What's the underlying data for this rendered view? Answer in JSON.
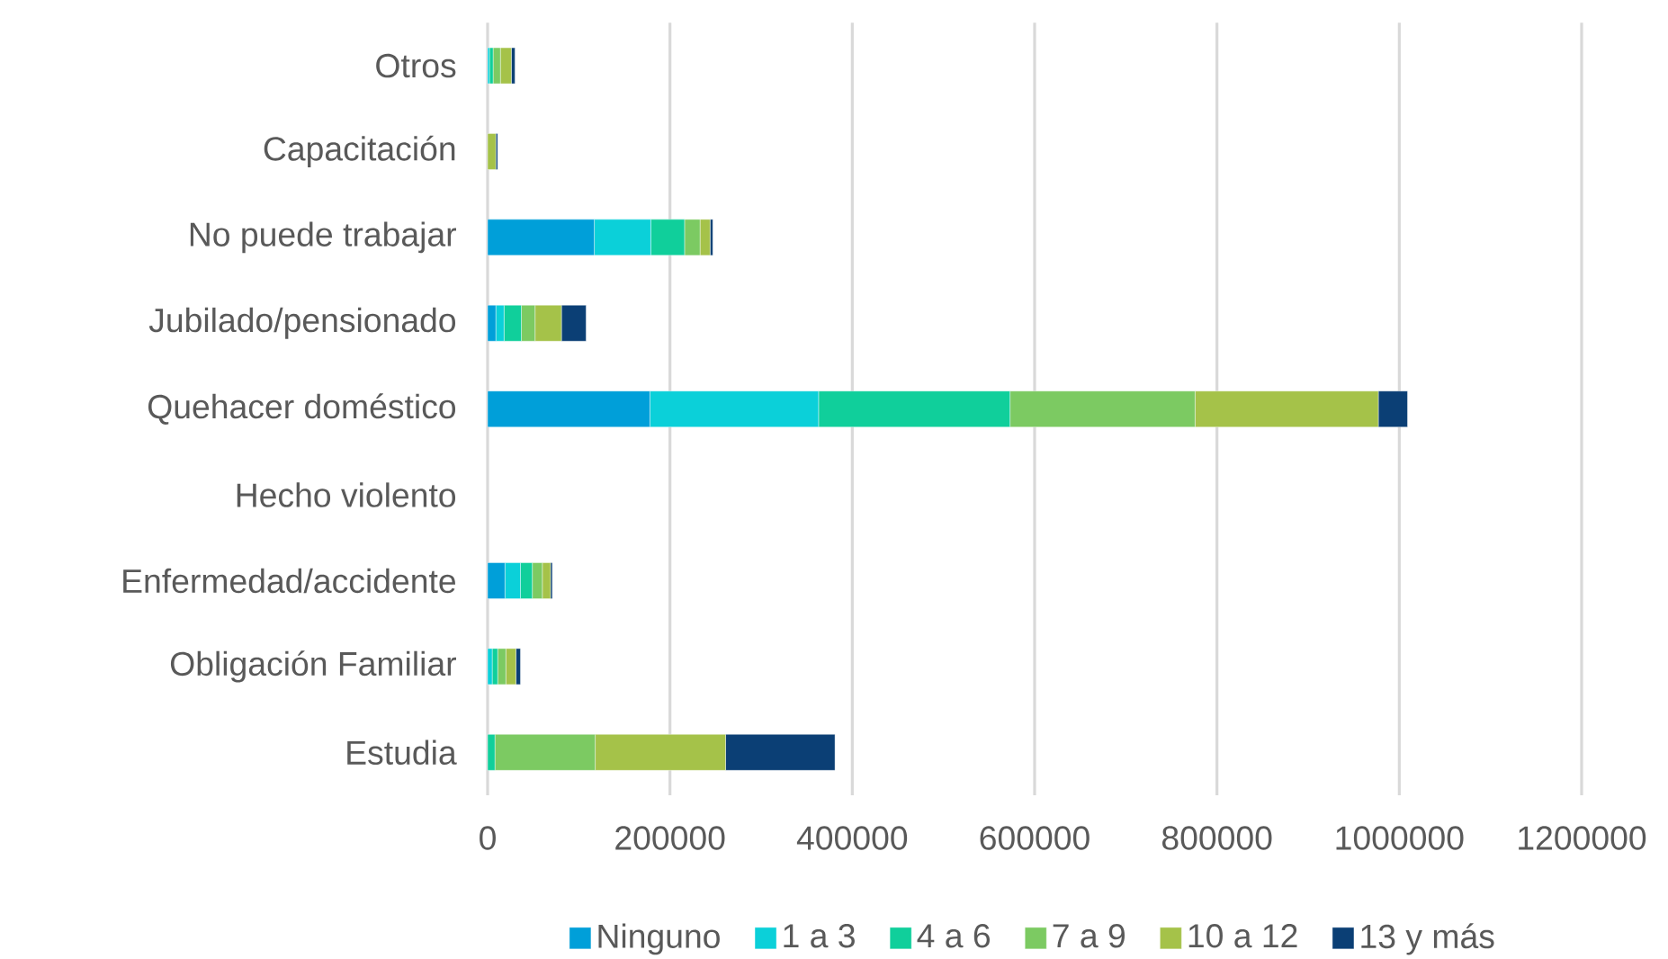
{
  "chart_data": {
    "type": "bar",
    "orientation": "horizontal",
    "stacked": true,
    "categories": [
      "Otros",
      "Capacitación",
      "No puede trabajar",
      "Jubilado/pensionado",
      "Quehacer doméstico",
      "Hecho violento",
      "Enfermedad/accidente",
      "Obligación Familiar",
      "Estudia"
    ],
    "series": [
      {
        "name": "Ninguno",
        "color": "#009fd9",
        "values": [
          0,
          0,
          117000,
          9000,
          178000,
          0,
          19000,
          null,
          0
        ]
      },
      {
        "name": "1 a 3",
        "color": "#0bd0d9",
        "values": [
          2000,
          0,
          62000,
          9000,
          185000,
          0,
          17000,
          5000,
          null
        ]
      },
      {
        "name": "4 a 6",
        "color": "#10cf9b",
        "values": [
          4000,
          0,
          37000,
          19000,
          210000,
          0,
          13000,
          6000,
          8000
        ]
      },
      {
        "name": "7 a 9",
        "color": "#7cca62",
        "values": [
          8000,
          null,
          17000,
          15000,
          203000,
          0,
          11000,
          9000,
          110000
        ]
      },
      {
        "name": "10 a 12",
        "color": "#a5c249",
        "values": [
          12000,
          9000,
          11000,
          29000,
          201000,
          0,
          9000,
          11000,
          143000
        ]
      },
      {
        "name": "13 y más",
        "color": "#0b3f75",
        "values": [
          4000,
          2000,
          3000,
          27000,
          32000,
          0,
          2000,
          5000,
          120000
        ]
      }
    ],
    "xlim": [
      0,
      1200000
    ],
    "xticks": [
      0,
      200000,
      400000,
      600000,
      800000,
      1000000,
      1200000
    ],
    "grid": "x",
    "legend": "bottom"
  }
}
